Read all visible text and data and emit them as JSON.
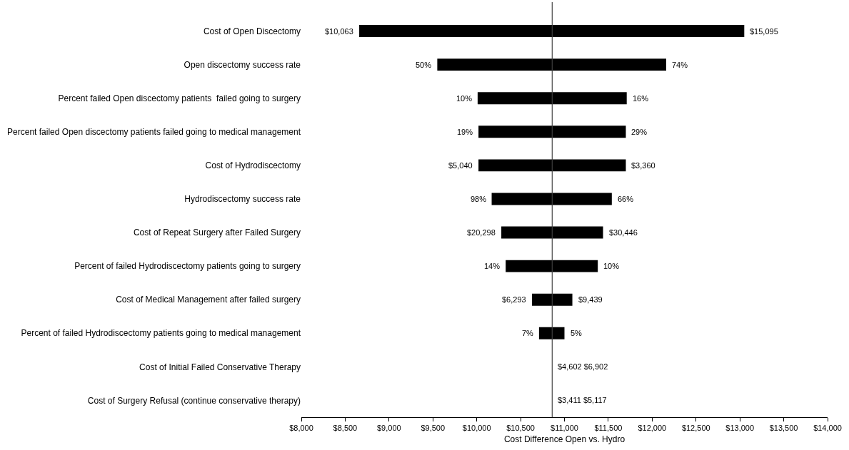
{
  "chart_data": {
    "type": "bar",
    "orientation": "horizontal",
    "xlabel": "Cost Difference Open vs. Hydro",
    "categories": [
      "Cost of Open Discectomy",
      "Open discectomy success rate",
      "Percent failed Open discectomy patients  failed going to surgery",
      "Percent failed Open discectomy patients failed going to medical management",
      "Cost of Hydrodiscectomy",
      "Hydrodiscectomy success rate",
      "Cost of Repeat Surgery after Failed Surgery",
      "Percent of failed Hydrodiscectomy patients going to surgery",
      "Cost of Medical Management after failed surgery",
      "Percent of failed Hydrodiscectomy patients going to medical management",
      "Cost of Initial Failed Conservative Therapy",
      "Cost of Surgery Refusal (continue conservative therapy)"
    ],
    "series": [
      {
        "color": "#000000",
        "base": [
          8660,
          9550,
          10010,
          10020,
          10020,
          10170,
          10280,
          10330,
          10630,
          10710,
          null,
          null
        ],
        "values": [
          4390,
          2610,
          1700,
          1680,
          1680,
          1370,
          1160,
          1050,
          460,
          290,
          null,
          null
        ]
      }
    ],
    "annotations": [
      {
        "text": "$10,063",
        "x": 8660,
        "y": "Cost of Open Discectomy"
      },
      {
        "text": "$15,095",
        "x": 13050,
        "y": "Cost of Open Discectomy"
      },
      {
        "text": "50%",
        "x": 9550,
        "y": "Open discectomy success rate"
      },
      {
        "text": "74%",
        "x": 12160,
        "y": "Open discectomy success rate"
      },
      {
        "text": "10%",
        "x": 10010,
        "y": "Percent failed Open discectomy patients  failed going to surgery"
      },
      {
        "text": "16%",
        "x": 11710,
        "y": "Percent failed Open discectomy patients  failed going to surgery"
      },
      {
        "text": "19%",
        "x": 10020,
        "y": "Percent failed Open discectomy patients failed going to medical management"
      },
      {
        "text": "29%",
        "x": 11700,
        "y": "Percent failed Open discectomy patients failed going to medical management"
      },
      {
        "text": "$5,040",
        "x": 10020,
        "y": "Cost of Hydrodiscectomy"
      },
      {
        "text": "$3,360",
        "x": 11700,
        "y": "Cost of Hydrodiscectomy"
      },
      {
        "text": "98%",
        "x": 10170,
        "y": "Hydrodiscectomy success rate"
      },
      {
        "text": "66%",
        "x": 11540,
        "y": "Hydrodiscectomy success rate"
      },
      {
        "text": "$20,298",
        "x": 10280,
        "y": "Cost of Repeat Surgery after Failed Surgery"
      },
      {
        "text": "$30,446",
        "x": 11440,
        "y": "Cost of Repeat Surgery after Failed Surgery"
      },
      {
        "text": "14%",
        "x": 10330,
        "y": "Percent of failed Hydrodiscectomy patients going to surgery"
      },
      {
        "text": "10%",
        "x": 11380,
        "y": "Percent of failed Hydrodiscectomy patients going to surgery"
      },
      {
        "text": "$6,293",
        "x": 10630,
        "y": "Cost of Medical Management after failed surgery"
      },
      {
        "text": "$9,439",
        "x": 11090,
        "y": "Cost of Medical Management after failed surgery"
      },
      {
        "text": "7%",
        "x": 10710,
        "y": "Percent of failed Hydrodiscectomy patients going to medical management"
      },
      {
        "text": "5%",
        "x": 11000,
        "y": "Percent of failed Hydrodiscectomy patients going to medical management"
      },
      {
        "text": "$4,602 $6,902",
        "x": 10860,
        "y": "Cost of Initial Failed Conservative Therapy"
      },
      {
        "text": "$3,411 $5,117",
        "x": 10860,
        "y": "Cost of Surgery Refusal (continue conservative therapy)"
      }
    ],
    "xlim": [
      8000,
      14000
    ],
    "xticks": [
      {
        "value": 8000,
        "label": "$8,000"
      },
      {
        "value": 8500,
        "label": "$8,500"
      },
      {
        "value": 9000,
        "label": "$9,000"
      },
      {
        "value": 9500,
        "label": "$9,500"
      },
      {
        "value": 10000,
        "label": "$10,000"
      },
      {
        "value": 10500,
        "label": "$10,500"
      },
      {
        "value": 11000,
        "label": "$11,000"
      },
      {
        "value": 11500,
        "label": "$11,500"
      },
      {
        "value": 12000,
        "label": "$12,000"
      },
      {
        "value": 12500,
        "label": "$12,500"
      },
      {
        "value": 13000,
        "label": "$13,000"
      },
      {
        "value": 13500,
        "label": "$13,500"
      },
      {
        "value": 14000,
        "label": "$14,000"
      }
    ],
    "ref_lines": [
      {
        "axis": "x",
        "value": 10860,
        "color": "#404040"
      }
    ],
    "grid": false
  }
}
